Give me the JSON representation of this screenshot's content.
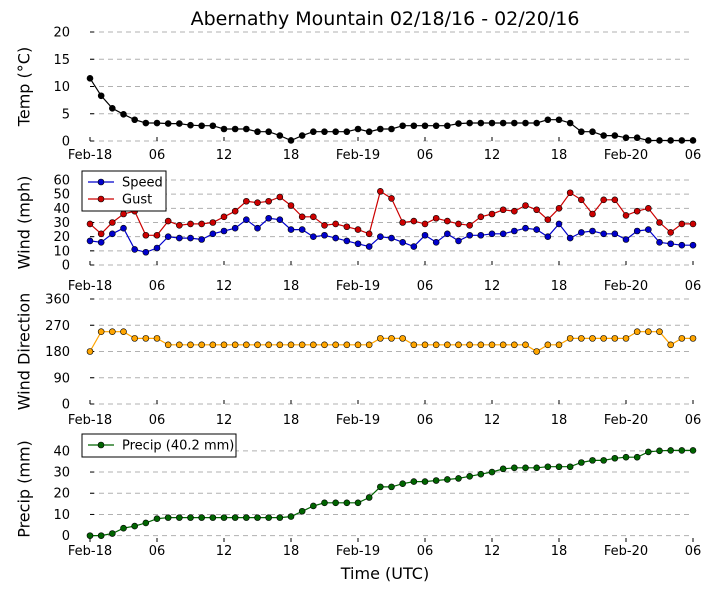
{
  "figure": {
    "title": "Abernathy Mountain 02/18/16 - 02/20/16",
    "xlabel": "Time (UTC)"
  },
  "colors": {
    "temp": "#000000",
    "speed": "#0000cc",
    "gust": "#cc0000",
    "direction": "#ffa500",
    "precip": "#006400",
    "grid": "#b0b0b0"
  },
  "chart_data": [
    {
      "type": "line",
      "id": "temp",
      "ylabel": "Temp (°C)",
      "ylim": [
        0,
        20
      ],
      "yticks": [
        0,
        5,
        10,
        15,
        20
      ],
      "grid": true,
      "x": [
        "2016-02-18 00:00",
        "2016-02-18 01:00",
        "2016-02-18 02:00",
        "2016-02-18 03:00",
        "2016-02-18 04:00",
        "2016-02-18 05:00",
        "2016-02-18 06:00",
        "2016-02-18 07:00",
        "2016-02-18 08:00",
        "2016-02-18 09:00",
        "2016-02-18 10:00",
        "2016-02-18 11:00",
        "2016-02-18 12:00",
        "2016-02-18 13:00",
        "2016-02-18 14:00",
        "2016-02-18 15:00",
        "2016-02-18 16:00",
        "2016-02-18 17:00",
        "2016-02-18 18:00",
        "2016-02-18 19:00",
        "2016-02-18 20:00",
        "2016-02-18 21:00",
        "2016-02-18 22:00",
        "2016-02-18 23:00",
        "2016-02-19 00:00",
        "2016-02-19 01:00",
        "2016-02-19 02:00",
        "2016-02-19 03:00",
        "2016-02-19 04:00",
        "2016-02-19 05:00",
        "2016-02-19 06:00",
        "2016-02-19 07:00",
        "2016-02-19 08:00",
        "2016-02-19 09:00",
        "2016-02-19 10:00",
        "2016-02-19 11:00",
        "2016-02-19 12:00",
        "2016-02-19 13:00",
        "2016-02-19 14:00",
        "2016-02-19 15:00",
        "2016-02-19 16:00",
        "2016-02-19 17:00",
        "2016-02-19 18:00",
        "2016-02-19 19:00",
        "2016-02-19 20:00",
        "2016-02-19 21:00",
        "2016-02-19 22:00",
        "2016-02-19 23:00",
        "2016-02-20 00:00",
        "2016-02-20 01:00",
        "2016-02-20 02:00",
        "2016-02-20 03:00",
        "2016-02-20 04:00",
        "2016-02-20 05:00",
        "2016-02-20 06:00"
      ],
      "series": [
        {
          "color_key": "temp",
          "values": [
            11.5,
            8.3,
            6,
            4.9,
            3.9,
            3.3,
            3.3,
            3.2,
            3.2,
            2.9,
            2.8,
            2.8,
            2.2,
            2.2,
            2.2,
            1.7,
            1.7,
            1,
            0.1,
            1,
            1.7,
            1.7,
            1.7,
            1.7,
            2.2,
            1.7,
            2.2,
            2.2,
            2.8,
            2.8,
            2.8,
            2.8,
            2.8,
            3.2,
            3.3,
            3.3,
            3.3,
            3.3,
            3.3,
            3.3,
            3.3,
            3.9,
            3.9,
            3.3,
            1.7,
            1.7,
            1,
            1,
            0.6,
            0.6,
            0.1,
            0.1,
            0.1,
            0.1,
            0.1
          ]
        }
      ]
    },
    {
      "type": "line",
      "id": "wind",
      "ylabel": "Wind (mph)",
      "ylim": [
        0,
        60
      ],
      "yticks": [
        0,
        10,
        20,
        30,
        40,
        50,
        60
      ],
      "grid": true,
      "legend_position": "top-left",
      "x": "same-as-temp",
      "series": [
        {
          "name": "Speed",
          "color_key": "speed",
          "values": [
            17,
            16,
            22,
            26,
            11,
            9,
            12,
            20,
            19,
            19,
            18,
            22,
            24,
            26,
            32,
            26,
            33,
            32,
            25,
            25,
            20,
            21,
            19,
            17,
            15,
            13,
            20,
            19,
            16,
            13,
            21,
            16,
            22,
            17,
            21,
            21,
            22,
            22,
            24,
            26,
            25,
            20,
            29,
            19,
            23,
            24,
            22,
            22,
            18,
            24,
            25,
            16,
            15,
            14,
            14
          ]
        },
        {
          "name": "Gust",
          "color_key": "gust",
          "values": [
            29,
            22,
            30,
            36,
            38,
            21,
            21,
            31,
            28,
            29,
            29,
            30,
            34,
            38,
            45,
            44,
            45,
            48,
            42,
            34,
            34,
            28,
            29,
            27,
            25,
            22,
            52,
            47,
            30,
            31,
            29,
            33,
            31,
            29,
            28,
            34,
            36,
            39,
            38,
            42,
            39,
            32,
            40,
            51,
            46,
            36,
            46,
            46,
            35,
            38,
            40,
            30,
            23,
            29,
            29
          ]
        }
      ]
    },
    {
      "type": "line",
      "id": "direction",
      "ylabel": "Wind Direction",
      "ylim": [
        0,
        360
      ],
      "yticks": [
        0,
        90,
        180,
        270,
        360
      ],
      "grid": true,
      "x": "same-as-temp",
      "series": [
        {
          "color_key": "direction",
          "values": [
            180,
            248,
            248,
            248,
            225,
            225,
            225,
            203,
            203,
            203,
            203,
            203,
            203,
            203,
            203,
            203,
            203,
            203,
            203,
            203,
            203,
            203,
            203,
            203,
            203,
            203,
            225,
            225,
            225,
            203,
            203,
            203,
            203,
            203,
            203,
            203,
            203,
            203,
            203,
            203,
            180,
            203,
            203,
            225,
            225,
            225,
            225,
            225,
            225,
            248,
            248,
            248,
            203,
            225,
            225
          ]
        }
      ]
    },
    {
      "type": "line",
      "id": "precip",
      "ylabel": "Precip (mm)",
      "ylim": [
        -3,
        47
      ],
      "yticks": [
        0,
        10,
        20,
        30,
        40
      ],
      "grid": true,
      "legend_position": "top-left",
      "x": "same-as-temp",
      "series": [
        {
          "name": "Precip (40.2 mm)",
          "color_key": "precip",
          "values": [
            0,
            0,
            1,
            3.5,
            4.5,
            6,
            8,
            8.5,
            8.5,
            8.5,
            8.5,
            8.5,
            8.5,
            8.5,
            8.5,
            8.5,
            8.5,
            8.5,
            9,
            11.5,
            14,
            15.5,
            15.5,
            15.5,
            15.5,
            18,
            23,
            23,
            24.5,
            25.5,
            25.5,
            26,
            26.5,
            27,
            28,
            29,
            30,
            31.5,
            32,
            32,
            32,
            32.5,
            32.5,
            32.5,
            34.5,
            35.5,
            35.5,
            36.5,
            37,
            37,
            39.5,
            40,
            40.2,
            40.2,
            40.2
          ]
        }
      ]
    }
  ],
  "xaxis": {
    "ticks": [
      {
        "at": "2016-02-18 00:00",
        "label": "Feb-18"
      },
      {
        "at": "2016-02-18 06:00",
        "label": "06"
      },
      {
        "at": "2016-02-18 12:00",
        "label": "12"
      },
      {
        "at": "2016-02-18 18:00",
        "label": "18"
      },
      {
        "at": "2016-02-19 00:00",
        "label": "Feb-19"
      },
      {
        "at": "2016-02-19 06:00",
        "label": "06"
      },
      {
        "at": "2016-02-19 12:00",
        "label": "12"
      },
      {
        "at": "2016-02-19 18:00",
        "label": "18"
      },
      {
        "at": "2016-02-20 00:00",
        "label": "Feb-20"
      },
      {
        "at": "2016-02-20 06:00",
        "label": "06"
      }
    ]
  }
}
